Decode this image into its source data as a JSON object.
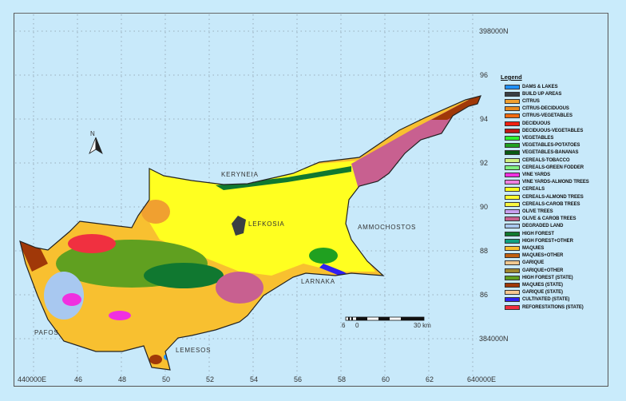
{
  "map": {
    "places": [
      {
        "name": "KERYNEIA",
        "id": "keryneia"
      },
      {
        "name": "LEFKOSIA",
        "id": "lefkosia"
      },
      {
        "name": "AMMOCHOSTOS",
        "id": "ammochostos"
      },
      {
        "name": "LARNAKA",
        "id": "larnaka"
      },
      {
        "name": "LEMESOS",
        "id": "lemesos"
      },
      {
        "name": "PAFOS",
        "id": "pafos"
      }
    ],
    "north_arrow_label": "N",
    "scale_bar": {
      "labels": [
        "6",
        "0",
        "30 km"
      ]
    },
    "x_ticks": {
      "first": "440000E",
      "values": [
        "46",
        "48",
        "50",
        "52",
        "54",
        "56",
        "58",
        "60",
        "62"
      ],
      "last": "640000E"
    },
    "y_ticks": {
      "top": "398000N",
      "values": [
        "96",
        "94",
        "92",
        "90",
        "88",
        "86"
      ],
      "bottom": "384000N"
    },
    "ocean_color": "#c8e9fa"
  },
  "legend": {
    "title": "Legend",
    "items": [
      {
        "label": "DAMS & LAKES",
        "color": "#1e90ff"
      },
      {
        "label": "BUILD UP AREAS",
        "color": "#3a3f44"
      },
      {
        "label": "CITRUS",
        "color": "#f0a030"
      },
      {
        "label": "CITRUS-DECIDUOUS",
        "color": "#e88a20"
      },
      {
        "label": "CITRUS-VEGETABLES",
        "color": "#f06a10"
      },
      {
        "label": "DECIDUOUS",
        "color": "#f02010"
      },
      {
        "label": "DECIDUOUS-VEGETABLES",
        "color": "#c01818"
      },
      {
        "label": "VEGETABLES",
        "color": "#30f030"
      },
      {
        "label": "VEGETABLES-POTATOES",
        "color": "#20a020"
      },
      {
        "label": "VEGETABLES-BANANAS",
        "color": "#0a5a14"
      },
      {
        "label": "CEREALS-TOBACCO",
        "color": "#d0f080"
      },
      {
        "label": "CEREALS-GREEN FODDER",
        "color": "#80f080"
      },
      {
        "label": "VINE YARDS",
        "color": "#f030e0"
      },
      {
        "label": "VINE YARDS-ALMOND TREES",
        "color": "#f080e0"
      },
      {
        "label": "CEREALS",
        "color": "#ffff20"
      },
      {
        "label": "CEREALS-ALMOND TREES",
        "color": "#ffff30"
      },
      {
        "label": "CEREALS-CAROB TREES",
        "color": "#f8f840"
      },
      {
        "label": "OLIVE TREES",
        "color": "#c8a0f0"
      },
      {
        "label": "OLIVE & CAROB TREES",
        "color": "#c86090"
      },
      {
        "label": "DEGRADED LAND",
        "color": "#a8c8f0"
      },
      {
        "label": "HIGH FOREST",
        "color": "#107830"
      },
      {
        "label": "HIGH FOREST+OTHER",
        "color": "#10a080"
      },
      {
        "label": "MAQUIES",
        "color": "#f8c030"
      },
      {
        "label": "MAQUIES+OTHER",
        "color": "#c06010"
      },
      {
        "label": "GARIQUE",
        "color": "#f0c890"
      },
      {
        "label": "GARIQUE+OTHER",
        "color": "#a08830"
      },
      {
        "label": "HIGH FOREST (STATE)",
        "color": "#60a020"
      },
      {
        "label": "MAQUIES (STATE)",
        "color": "#a03808"
      },
      {
        "label": "GARIQUE (STATE)",
        "color": "#f8c890"
      },
      {
        "label": "CULTIVATED (STATE)",
        "color": "#3020f0"
      },
      {
        "label": "REFORESTATIONS (STATE)",
        "color": "#f03040"
      }
    ]
  }
}
